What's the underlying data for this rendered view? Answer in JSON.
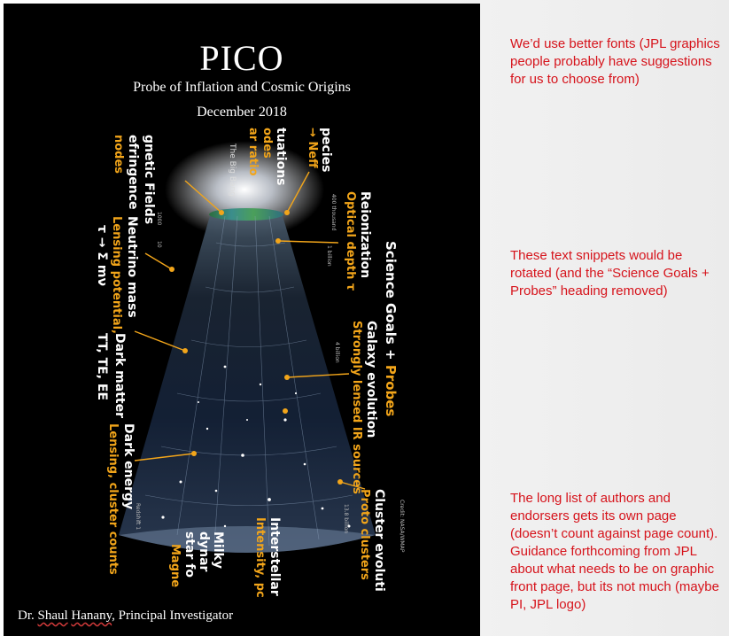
{
  "cover": {
    "title": "PICO",
    "subtitle": "Probe of Inflation and Cosmic Origins",
    "date": "December 2018",
    "pi_prefix": "Dr. ",
    "pi_first": "Shaul",
    "pi_space": " ",
    "pi_last": "Hanany",
    "pi_suffix": ", Principal Investigator"
  },
  "figure": {
    "big_bang": "The Big Bang",
    "heading_white": "Science Goals + ",
    "heading_orange": "Probes",
    "right_labels": [
      {
        "white": "pecies",
        "orange": "→ Neff"
      },
      {
        "white": "tuations",
        "orange": "odes"
      },
      {
        "white": "",
        "orange": "ar ratio"
      },
      {
        "white": "Reionization",
        "orange": "Optical depth τ"
      },
      {
        "white": "Galaxy evolution",
        "orange": "Strongly lensed IR sources"
      },
      {
        "white": "Cluster evoluti",
        "orange": "Proto clusters"
      },
      {
        "white": "Interstellar",
        "orange": "Intensity, pc"
      }
    ],
    "left_labels": [
      {
        "white": "gnetic Fields",
        "orange": ""
      },
      {
        "white": "efringence",
        "orange": "nodes"
      },
      {
        "white": "Neutrino mass",
        "orange": "Lensing potential,"
      },
      {
        "white": "τ → Σ mν",
        "orange": ""
      },
      {
        "white": "TT, TE, EE",
        "orange": ""
      },
      {
        "white": "Dark matter",
        "orange": ""
      },
      {
        "white": "Dark energy",
        "orange": "Lensing, cluster counts"
      },
      {
        "white": "Milky",
        "orange": ""
      },
      {
        "white": "dynar",
        "orange": ""
      },
      {
        "white": "star fo",
        "orange": ""
      },
      {
        "white": "",
        "orange": "Magne"
      }
    ],
    "time_ticks": [
      "400 thousand",
      "1 billion",
      "4 billion",
      "13.8 billion"
    ],
    "depth_ticks": [
      "1000",
      "10",
      "Redshift 1"
    ],
    "credit": "Credit: NASA/WMAP"
  },
  "notes": [
    "We’d use better fonts (JPL graphics people probably have suggestions for us to choose from)",
    "These text snippets would be rotated (and the “Science Goals + Probes” heading removed)",
    "The long list of authors and endorsers gets its own page (doesn’t count against page count). Guidance forthcoming from JPL about what needs to be on graphic front page, but its not much (maybe PI, JPL logo)"
  ],
  "colors": {
    "cover_bg": "#000000",
    "label_orange": "#f2a51a",
    "note_red": "#d6131b"
  }
}
